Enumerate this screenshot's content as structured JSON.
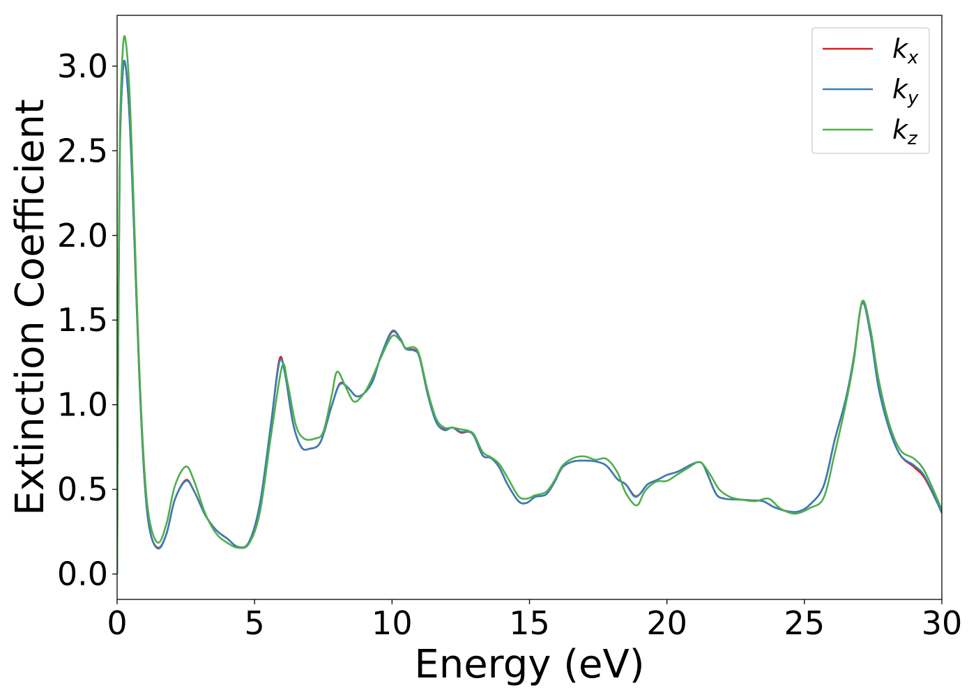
{
  "chart_data": {
    "type": "line",
    "title": "",
    "xlabel": "Energy (eV)",
    "ylabel": "Extinction Coefficient",
    "xlim": [
      0,
      30
    ],
    "ylim": [
      -0.15,
      3.3
    ],
    "xticks": [
      0,
      5,
      10,
      15,
      20,
      25,
      30
    ],
    "xtick_labels": [
      "0",
      "5",
      "10",
      "15",
      "20",
      "25",
      "30"
    ],
    "yticks": [
      0.0,
      0.5,
      1.0,
      1.5,
      2.0,
      2.5,
      3.0
    ],
    "ytick_labels": [
      "0.0",
      "0.5",
      "1.0",
      "1.5",
      "2.0",
      "2.5",
      "3.0"
    ],
    "grid": false,
    "legend_position": "top-right",
    "series": [
      {
        "name": "k",
        "subscript": "x",
        "color": "#e41a1c",
        "points": [
          [
            0.0,
            0.0
          ],
          [
            0.05,
            1.6
          ],
          [
            0.1,
            2.5
          ],
          [
            0.2,
            2.95
          ],
          [
            0.3,
            3.01
          ],
          [
            0.45,
            2.7
          ],
          [
            0.6,
            2.1
          ],
          [
            0.8,
            1.2
          ],
          [
            1.0,
            0.55
          ],
          [
            1.2,
            0.25
          ],
          [
            1.5,
            0.155
          ],
          [
            1.8,
            0.24
          ],
          [
            2.1,
            0.44
          ],
          [
            2.5,
            0.555
          ],
          [
            2.8,
            0.49
          ],
          [
            3.2,
            0.35
          ],
          [
            3.6,
            0.26
          ],
          [
            4.0,
            0.21
          ],
          [
            4.4,
            0.16
          ],
          [
            4.8,
            0.19
          ],
          [
            5.2,
            0.42
          ],
          [
            5.6,
            0.89
          ],
          [
            5.9,
            1.265
          ],
          [
            6.1,
            1.19
          ],
          [
            6.4,
            0.89
          ],
          [
            6.7,
            0.75
          ],
          [
            7.0,
            0.74
          ],
          [
            7.4,
            0.78
          ],
          [
            7.8,
            0.99
          ],
          [
            8.1,
            1.125
          ],
          [
            8.4,
            1.1
          ],
          [
            8.7,
            1.05
          ],
          [
            9.0,
            1.07
          ],
          [
            9.3,
            1.14
          ],
          [
            9.6,
            1.29
          ],
          [
            10.0,
            1.43
          ],
          [
            10.3,
            1.39
          ],
          [
            10.5,
            1.33
          ],
          [
            10.8,
            1.325
          ],
          [
            11.0,
            1.28
          ],
          [
            11.3,
            1.06
          ],
          [
            11.6,
            0.9
          ],
          [
            11.9,
            0.855
          ],
          [
            12.2,
            0.865
          ],
          [
            12.5,
            0.835
          ],
          [
            12.8,
            0.84
          ],
          [
            13.0,
            0.81
          ],
          [
            13.3,
            0.7
          ],
          [
            13.6,
            0.685
          ],
          [
            13.9,
            0.63
          ],
          [
            14.2,
            0.53
          ],
          [
            14.6,
            0.43
          ],
          [
            14.9,
            0.42
          ],
          [
            15.2,
            0.455
          ],
          [
            15.6,
            0.47
          ],
          [
            15.9,
            0.54
          ],
          [
            16.2,
            0.63
          ],
          [
            16.6,
            0.665
          ],
          [
            17.0,
            0.67
          ],
          [
            17.4,
            0.665
          ],
          [
            17.8,
            0.64
          ],
          [
            18.2,
            0.56
          ],
          [
            18.5,
            0.53
          ],
          [
            18.8,
            0.465
          ],
          [
            19.0,
            0.47
          ],
          [
            19.3,
            0.53
          ],
          [
            19.7,
            0.56
          ],
          [
            20.0,
            0.585
          ],
          [
            20.4,
            0.605
          ],
          [
            20.8,
            0.64
          ],
          [
            21.1,
            0.66
          ],
          [
            21.3,
            0.65
          ],
          [
            21.5,
            0.58
          ],
          [
            21.8,
            0.47
          ],
          [
            22.1,
            0.445
          ],
          [
            22.6,
            0.44
          ],
          [
            23.1,
            0.435
          ],
          [
            23.5,
            0.43
          ],
          [
            23.9,
            0.395
          ],
          [
            24.4,
            0.37
          ],
          [
            24.8,
            0.37
          ],
          [
            25.2,
            0.41
          ],
          [
            25.7,
            0.52
          ],
          [
            26.1,
            0.79
          ],
          [
            26.5,
            1.03
          ],
          [
            26.8,
            1.28
          ],
          [
            27.1,
            1.6
          ],
          [
            27.4,
            1.42
          ],
          [
            27.7,
            1.1
          ],
          [
            28.1,
            0.85
          ],
          [
            28.5,
            0.7
          ],
          [
            29.0,
            0.63
          ],
          [
            29.4,
            0.56
          ],
          [
            30.0,
            0.365
          ]
        ]
      },
      {
        "name": "k",
        "subscript": "y",
        "color": "#377eb8",
        "points": [
          [
            0.0,
            0.0
          ],
          [
            0.05,
            1.6
          ],
          [
            0.1,
            2.5
          ],
          [
            0.2,
            2.95
          ],
          [
            0.3,
            3.01
          ],
          [
            0.45,
            2.7
          ],
          [
            0.6,
            2.1
          ],
          [
            0.8,
            1.2
          ],
          [
            1.0,
            0.55
          ],
          [
            1.2,
            0.25
          ],
          [
            1.5,
            0.15
          ],
          [
            1.8,
            0.24
          ],
          [
            2.1,
            0.44
          ],
          [
            2.5,
            0.55
          ],
          [
            2.8,
            0.49
          ],
          [
            3.2,
            0.35
          ],
          [
            3.6,
            0.26
          ],
          [
            4.0,
            0.21
          ],
          [
            4.4,
            0.16
          ],
          [
            4.8,
            0.19
          ],
          [
            5.2,
            0.42
          ],
          [
            5.6,
            0.89
          ],
          [
            5.9,
            1.25
          ],
          [
            6.1,
            1.19
          ],
          [
            6.4,
            0.89
          ],
          [
            6.7,
            0.75
          ],
          [
            7.0,
            0.74
          ],
          [
            7.4,
            0.78
          ],
          [
            7.8,
            0.99
          ],
          [
            8.1,
            1.12
          ],
          [
            8.4,
            1.1
          ],
          [
            8.7,
            1.05
          ],
          [
            9.0,
            1.07
          ],
          [
            9.3,
            1.14
          ],
          [
            9.6,
            1.29
          ],
          [
            10.0,
            1.435
          ],
          [
            10.3,
            1.39
          ],
          [
            10.5,
            1.33
          ],
          [
            10.8,
            1.32
          ],
          [
            11.0,
            1.28
          ],
          [
            11.3,
            1.06
          ],
          [
            11.6,
            0.9
          ],
          [
            11.9,
            0.85
          ],
          [
            12.2,
            0.865
          ],
          [
            12.5,
            0.84
          ],
          [
            12.8,
            0.84
          ],
          [
            13.0,
            0.81
          ],
          [
            13.3,
            0.7
          ],
          [
            13.6,
            0.685
          ],
          [
            13.9,
            0.63
          ],
          [
            14.2,
            0.53
          ],
          [
            14.6,
            0.43
          ],
          [
            14.9,
            0.42
          ],
          [
            15.2,
            0.455
          ],
          [
            15.6,
            0.47
          ],
          [
            15.9,
            0.54
          ],
          [
            16.2,
            0.63
          ],
          [
            16.6,
            0.665
          ],
          [
            17.0,
            0.67
          ],
          [
            17.4,
            0.665
          ],
          [
            17.8,
            0.64
          ],
          [
            18.2,
            0.56
          ],
          [
            18.5,
            0.53
          ],
          [
            18.8,
            0.46
          ],
          [
            19.0,
            0.47
          ],
          [
            19.3,
            0.53
          ],
          [
            19.7,
            0.56
          ],
          [
            20.0,
            0.585
          ],
          [
            20.4,
            0.605
          ],
          [
            20.8,
            0.64
          ],
          [
            21.1,
            0.66
          ],
          [
            21.3,
            0.65
          ],
          [
            21.5,
            0.58
          ],
          [
            21.8,
            0.47
          ],
          [
            22.1,
            0.445
          ],
          [
            22.6,
            0.44
          ],
          [
            23.1,
            0.435
          ],
          [
            23.5,
            0.43
          ],
          [
            23.9,
            0.395
          ],
          [
            24.4,
            0.37
          ],
          [
            24.8,
            0.37
          ],
          [
            25.2,
            0.41
          ],
          [
            25.7,
            0.52
          ],
          [
            26.1,
            0.79
          ],
          [
            26.5,
            1.03
          ],
          [
            26.8,
            1.28
          ],
          [
            27.1,
            1.6
          ],
          [
            27.4,
            1.42
          ],
          [
            27.7,
            1.1
          ],
          [
            28.1,
            0.85
          ],
          [
            28.5,
            0.7
          ],
          [
            29.0,
            0.64
          ],
          [
            29.4,
            0.57
          ],
          [
            30.0,
            0.36
          ]
        ]
      },
      {
        "name": "k",
        "subscript": "z",
        "color": "#4daf4a",
        "points": [
          [
            0.0,
            0.0
          ],
          [
            0.05,
            1.7
          ],
          [
            0.1,
            2.6
          ],
          [
            0.2,
            3.08
          ],
          [
            0.3,
            3.16
          ],
          [
            0.45,
            2.85
          ],
          [
            0.6,
            2.2
          ],
          [
            0.8,
            1.25
          ],
          [
            1.0,
            0.6
          ],
          [
            1.2,
            0.3
          ],
          [
            1.5,
            0.185
          ],
          [
            1.8,
            0.3
          ],
          [
            2.1,
            0.52
          ],
          [
            2.5,
            0.635
          ],
          [
            2.8,
            0.55
          ],
          [
            3.2,
            0.36
          ],
          [
            3.6,
            0.24
          ],
          [
            4.0,
            0.185
          ],
          [
            4.4,
            0.155
          ],
          [
            4.8,
            0.18
          ],
          [
            5.2,
            0.37
          ],
          [
            5.6,
            0.82
          ],
          [
            6.0,
            1.225
          ],
          [
            6.2,
            1.13
          ],
          [
            6.5,
            0.88
          ],
          [
            6.8,
            0.8
          ],
          [
            7.2,
            0.8
          ],
          [
            7.5,
            0.84
          ],
          [
            7.8,
            1.05
          ],
          [
            8.0,
            1.195
          ],
          [
            8.3,
            1.11
          ],
          [
            8.6,
            1.02
          ],
          [
            8.9,
            1.05
          ],
          [
            9.2,
            1.13
          ],
          [
            9.6,
            1.28
          ],
          [
            10.0,
            1.405
          ],
          [
            10.3,
            1.38
          ],
          [
            10.5,
            1.335
          ],
          [
            10.8,
            1.34
          ],
          [
            11.0,
            1.29
          ],
          [
            11.3,
            1.08
          ],
          [
            11.6,
            0.92
          ],
          [
            11.9,
            0.865
          ],
          [
            12.2,
            0.865
          ],
          [
            12.5,
            0.855
          ],
          [
            12.8,
            0.845
          ],
          [
            13.0,
            0.82
          ],
          [
            13.3,
            0.72
          ],
          [
            13.6,
            0.69
          ],
          [
            13.9,
            0.65
          ],
          [
            14.2,
            0.57
          ],
          [
            14.6,
            0.46
          ],
          [
            14.9,
            0.445
          ],
          [
            15.2,
            0.465
          ],
          [
            15.6,
            0.485
          ],
          [
            15.9,
            0.55
          ],
          [
            16.2,
            0.64
          ],
          [
            16.6,
            0.685
          ],
          [
            17.0,
            0.695
          ],
          [
            17.4,
            0.675
          ],
          [
            17.8,
            0.68
          ],
          [
            18.2,
            0.6
          ],
          [
            18.5,
            0.48
          ],
          [
            18.9,
            0.405
          ],
          [
            19.2,
            0.49
          ],
          [
            19.6,
            0.545
          ],
          [
            20.0,
            0.55
          ],
          [
            20.4,
            0.59
          ],
          [
            20.8,
            0.63
          ],
          [
            21.1,
            0.66
          ],
          [
            21.3,
            0.65
          ],
          [
            21.6,
            0.58
          ],
          [
            21.9,
            0.5
          ],
          [
            22.3,
            0.455
          ],
          [
            22.7,
            0.44
          ],
          [
            23.2,
            0.43
          ],
          [
            23.7,
            0.445
          ],
          [
            24.1,
            0.39
          ],
          [
            24.5,
            0.36
          ],
          [
            24.8,
            0.36
          ],
          [
            25.2,
            0.39
          ],
          [
            25.7,
            0.45
          ],
          [
            26.1,
            0.71
          ],
          [
            26.5,
            1.0
          ],
          [
            26.8,
            1.26
          ],
          [
            27.1,
            1.61
          ],
          [
            27.4,
            1.45
          ],
          [
            27.7,
            1.15
          ],
          [
            28.1,
            0.88
          ],
          [
            28.5,
            0.73
          ],
          [
            29.0,
            0.68
          ],
          [
            29.4,
            0.6
          ],
          [
            30.0,
            0.38
          ]
        ]
      }
    ]
  }
}
